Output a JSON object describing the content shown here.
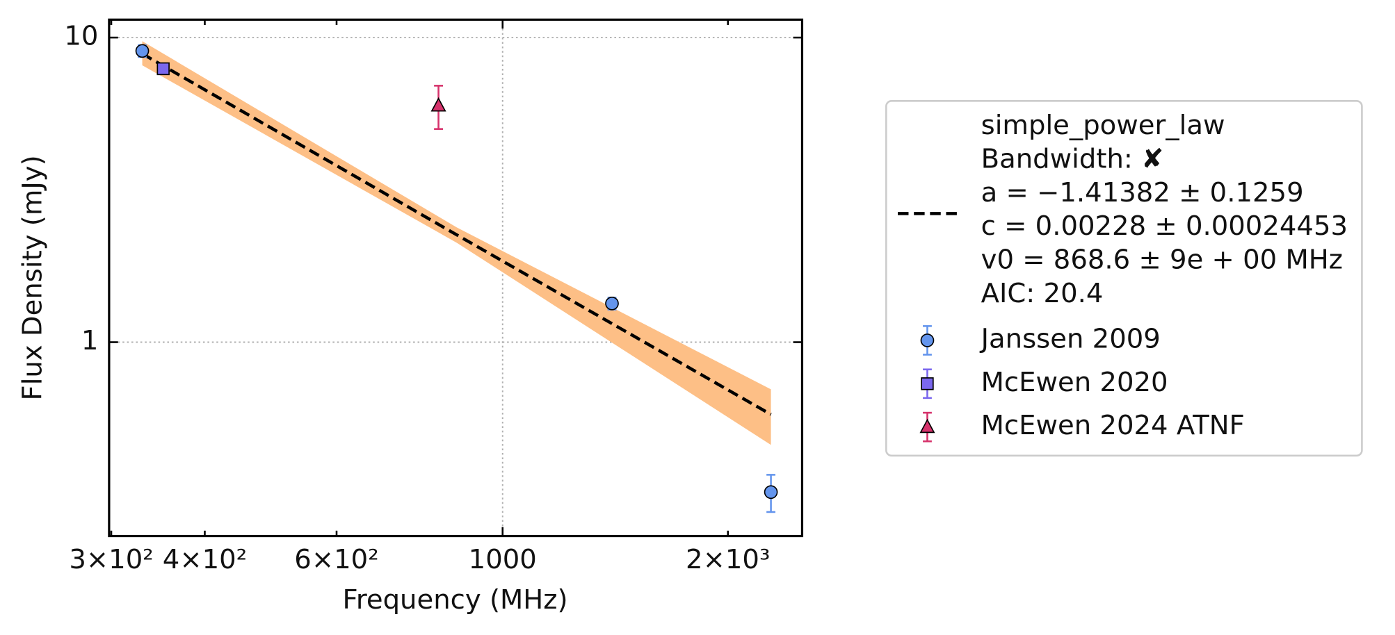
{
  "chart_data": {
    "type": "scatter",
    "x_label": "Frequency (MHz)",
    "y_label": "Flux Density (mJy)",
    "xscale": "log",
    "yscale": "log",
    "xlim": [
      298,
      2513
    ],
    "ylim": [
      0.231,
      11.45
    ],
    "xticks": [
      {
        "value": 300,
        "label": "3×10²"
      },
      {
        "value": 400,
        "label": "4×10²"
      },
      {
        "value": 600,
        "label": "6×10²"
      },
      1000,
      {
        "value": 2000,
        "label": "2×10³"
      }
    ],
    "yticks": [
      1,
      10
    ],
    "grid": true,
    "legend": "outside right",
    "fit": {
      "label_lines": [
        "simple_power_law",
        "Bandwidth: ✘",
        "a = −1.41382 ± 0.1259",
        "c = 0.00228 ± 0.00024453",
        "v0 = 868.6 ± 9e + 00 MHz",
        "AIC: 20.4"
      ],
      "color": "#000000",
      "band_color": "#fdbf86",
      "x": [
        330,
        868.6,
        2283
      ],
      "values": [
        8.85,
        2.25,
        0.579
      ],
      "lower": [
        8.11,
        2.12,
        0.46
      ],
      "upper": [
        9.73,
        2.38,
        0.7
      ]
    },
    "series": [
      {
        "name": "Janssen 2009",
        "color": "#6495ed",
        "marker": "circle",
        "x": [
          330,
          1400,
          2283
        ],
        "values": [
          9.04,
          1.34,
          0.322
        ],
        "errors": [
          0.4,
          0.06,
          0.045
        ]
      },
      {
        "name": "McEwen 2020",
        "color": "#7b68ee",
        "marker": "square",
        "x": [
          352
        ],
        "values": [
          7.9
        ],
        "errors": [
          0.3
        ]
      },
      {
        "name": "McEwen 2024 ATNF",
        "color": "#d6336c",
        "marker": "triangle",
        "x": [
          821
        ],
        "values": [
          5.98
        ],
        "errors": [
          0.97
        ]
      }
    ]
  }
}
